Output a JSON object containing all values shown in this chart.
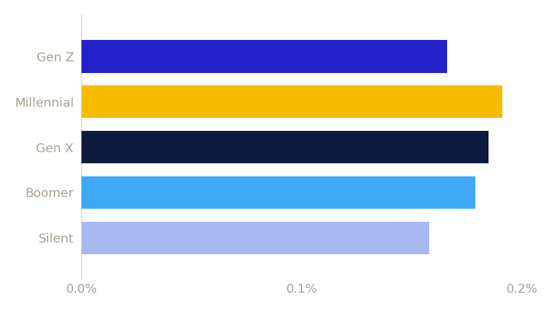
{
  "categories": [
    "Silent",
    "Boomer",
    "Gen X",
    "Millennial",
    "Gen Z"
  ],
  "values": [
    0.00158,
    0.00179,
    0.00185,
    0.00191,
    0.00166
  ],
  "bar_colors": [
    "#a8b8f0",
    "#3fa9f5",
    "#0d1b3e",
    "#f5bc00",
    "#2222cc"
  ],
  "xlim": [
    0,
    0.002
  ],
  "xtick_values": [
    0.0,
    0.001,
    0.002
  ],
  "xtick_labels": [
    "0.0%",
    "0.1%",
    "0.2%"
  ],
  "background_color": "#ffffff",
  "bar_height": 0.72,
  "label_color": "#aaa090",
  "label_fontsize": 13,
  "spine_color": "#cccccc"
}
